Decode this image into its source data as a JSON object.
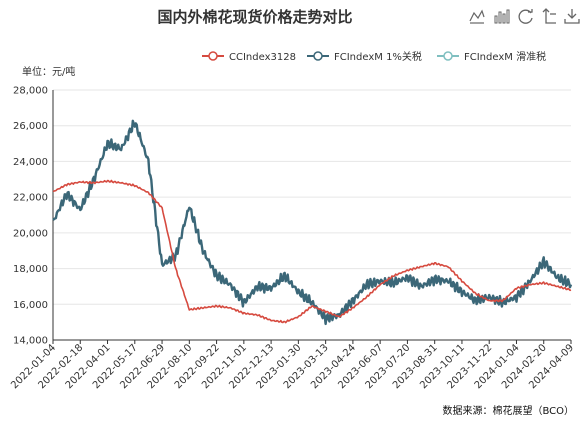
{
  "chart_data": {
    "type": "line",
    "title": "国内外棉花现货价格走势对比",
    "unit_label": "单位：元/吨",
    "source": "数据来源：棉花展望（BCO）",
    "ylim": [
      14000,
      28000
    ],
    "y_ticks": [
      "14,000",
      "16,000",
      "18,000",
      "20,000",
      "22,000",
      "24,000",
      "26,000",
      "28,000"
    ],
    "x_ticks": [
      "2022-01-04",
      "2022-02-18",
      "2022-04-01",
      "2022-05-17",
      "2022-06-29",
      "2022-08-10",
      "2022-09-22",
      "2022-11-01",
      "2022-12-13",
      "2023-01-30",
      "2023-03-13",
      "2023-04-24",
      "2023-06-07",
      "2023-07-20",
      "2023-08-31",
      "2023-10-11",
      "2023-11-22",
      "2024-01-04",
      "2024-02-20",
      "2024-04-09"
    ],
    "legend_position": "top-right",
    "grid": "horizontal",
    "colors": {
      "series0": "#d64a3f",
      "series1": "#3b6778",
      "series2": "#7fbfc0"
    },
    "series": [
      {
        "name": "CCIndex3128",
        "x": [
          0,
          0.5,
          1,
          1.5,
          2,
          2.5,
          3,
          3.5,
          4,
          4.5,
          5,
          5.5,
          6,
          6.5,
          7,
          7.5,
          8,
          8.5,
          9,
          9.5,
          10,
          10.5,
          11,
          11.5,
          12,
          12.5,
          13,
          13.5,
          14,
          14.5,
          15,
          15.5,
          16,
          16.5,
          17,
          17.5,
          18,
          18.5,
          19
        ],
        "values": [
          22300,
          22700,
          22850,
          22800,
          22900,
          22800,
          22650,
          22250,
          21400,
          18000,
          15700,
          15800,
          15900,
          15800,
          15500,
          15400,
          15100,
          15000,
          15300,
          15900,
          15600,
          15300,
          15800,
          16400,
          17100,
          17600,
          17900,
          18100,
          18300,
          18100,
          17300,
          16600,
          16200,
          16200,
          16900,
          17100,
          17200,
          17000,
          16800
        ]
      },
      {
        "name": "FCIndexM 1%关税",
        "x": [
          0,
          0.5,
          1,
          1.5,
          2,
          2.5,
          3,
          3.5,
          4,
          4.5,
          5,
          5.5,
          6,
          6.5,
          7,
          7.5,
          8,
          8.5,
          9,
          9.5,
          10,
          10.5,
          11,
          11.5,
          12,
          12.5,
          13,
          13.5,
          14,
          14.5,
          15,
          15.5,
          16,
          16.5,
          17,
          17.5,
          18,
          18.5,
          19
        ],
        "values": [
          20600,
          22200,
          21300,
          23000,
          25000,
          24700,
          26200,
          24000,
          18200,
          18700,
          21500,
          19000,
          17600,
          17100,
          16100,
          17000,
          16900,
          17600,
          16700,
          16100,
          15200,
          15400,
          16200,
          17100,
          17300,
          17200,
          17500,
          17000,
          17400,
          17300,
          16700,
          16200,
          16400,
          16100,
          16400,
          17300,
          18400,
          17500,
          17100
        ]
      },
      {
        "name": "FCIndexM 滑准税",
        "x": [
          0,
          0.5,
          1,
          1.5,
          2,
          2.5,
          3,
          3.5,
          4,
          4.5,
          5,
          5.5,
          6,
          6.5,
          7,
          7.5,
          8,
          8.5,
          9,
          9.5,
          10,
          10.5,
          11,
          11.5,
          12,
          12.5,
          13,
          13.5,
          14,
          14.5,
          15,
          15.5,
          16,
          16.5,
          17,
          17.5,
          18,
          18.5,
          19
        ],
        "values": [
          20600,
          22200,
          21300,
          23000,
          25000,
          24700,
          26200,
          24000,
          18200,
          18700,
          21500,
          19000,
          17600,
          17100,
          16100,
          17000,
          16900,
          17600,
          16700,
          16100,
          15200,
          15400,
          16200,
          17100,
          17300,
          17200,
          17500,
          17000,
          17400,
          17300,
          16700,
          16200,
          16400,
          16100,
          16400,
          17300,
          18400,
          17500,
          17100
        ]
      }
    ]
  }
}
